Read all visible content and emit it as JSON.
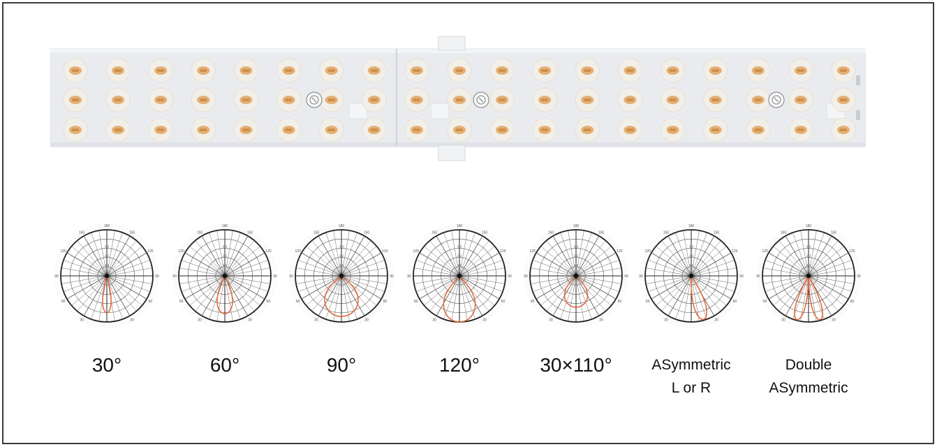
{
  "colors": {
    "frame": "#3a3a3a",
    "housing": "#e9ebee",
    "led": "#e3a868",
    "curve": "#e06a3e",
    "grid": "#555555",
    "text": "#111111"
  },
  "led_module": {
    "rows": 3,
    "columns": 19,
    "screw_count": 3
  },
  "beam_patterns": [
    {
      "label_lines": [
        "30°"
      ],
      "curve": "narrow"
    },
    {
      "label_lines": [
        "60°"
      ],
      "curve": "medium"
    },
    {
      "label_lines": [
        "90°"
      ],
      "curve": "wide"
    },
    {
      "label_lines": [
        "120°"
      ],
      "curve": "extra-wide"
    },
    {
      "label_lines": [
        "30×110°"
      ],
      "curve": "elliptical"
    },
    {
      "label_lines": [
        "ASymmetric",
        "L or R"
      ],
      "curve": "asymmetric"
    },
    {
      "label_lines": [
        "Double",
        "ASymmetric"
      ],
      "curve": "double-asymmetric"
    }
  ]
}
